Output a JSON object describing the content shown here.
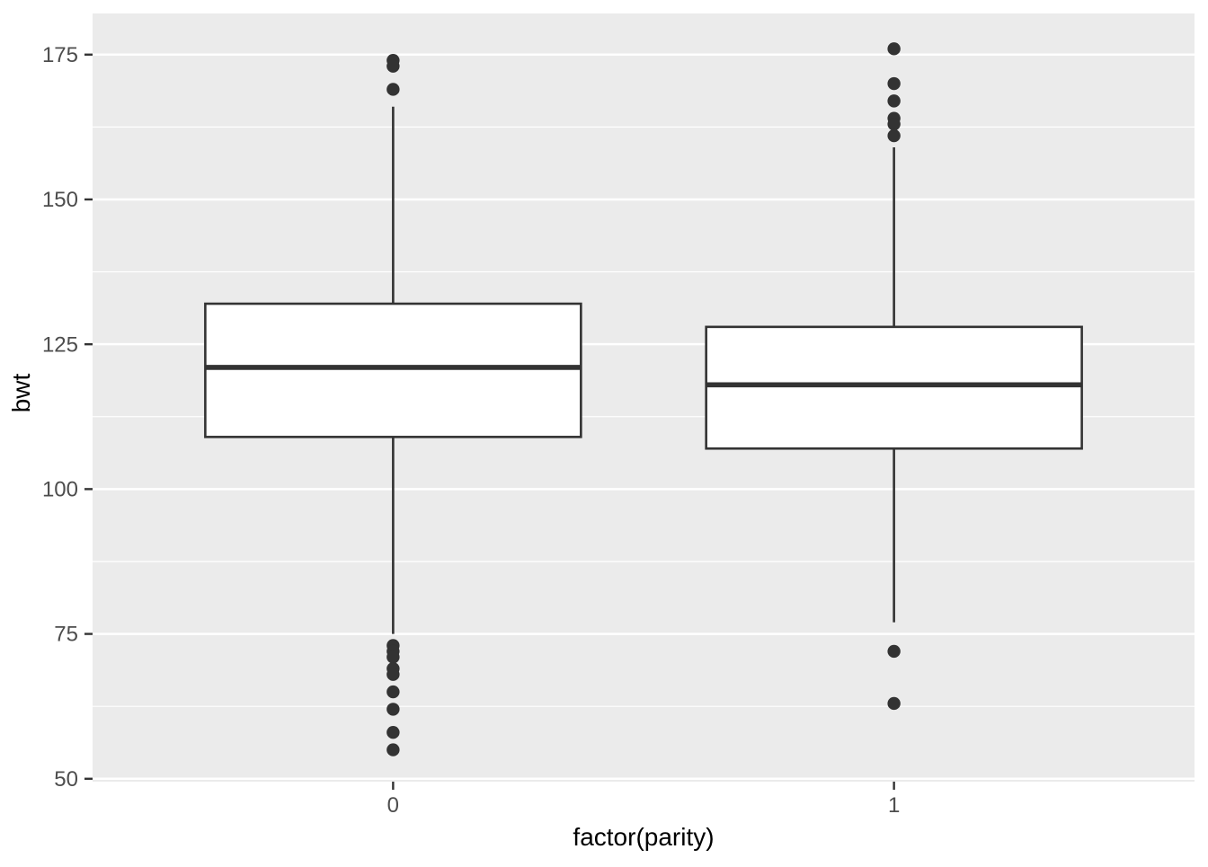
{
  "figure": {
    "background": "#ffffff"
  },
  "chart_data": {
    "type": "boxplot",
    "title": "",
    "xlabel": "factor(parity)",
    "ylabel": "bwt",
    "categories": [
      "0",
      "1"
    ],
    "x_tick_labels": [
      "0",
      "1"
    ],
    "y_tick_labels": [
      "50",
      "75",
      "100",
      "125",
      "150",
      "175"
    ],
    "y_axis": {
      "major_ticks": [
        50,
        75,
        100,
        125,
        150,
        175
      ],
      "minor_ticks": [
        62.5,
        87.5,
        112.5,
        137.5,
        162.5
      ],
      "ylim": [
        49.5,
        182.1
      ],
      "grid": true
    },
    "x_axis": {
      "type": "discrete",
      "expand": 0.6,
      "box_width_units": 0.75
    },
    "series": [
      {
        "category": "0",
        "q1": 109,
        "median": 121,
        "q3": 132,
        "whisker_low": 75,
        "whisker_high": 166,
        "outliers_high": [
          174,
          173,
          169
        ],
        "outliers_low": [
          73,
          72,
          71,
          69,
          68,
          65,
          62,
          58,
          55
        ]
      },
      {
        "category": "1",
        "q1": 107,
        "median": 118,
        "q3": 128,
        "whisker_low": 77,
        "whisker_high": 159,
        "outliers_high": [
          176,
          170,
          167,
          164,
          163,
          161
        ],
        "outliers_low": [
          72,
          63
        ]
      }
    ],
    "style": {
      "panel_background": "#EBEBEB",
      "grid_color": "#FFFFFF",
      "box_fill": "#FFFFFF",
      "stroke_color": "#333333",
      "tick_label_color": "#4D4D4D",
      "axis_title_color": "#000000",
      "outlier_radius": 7.2,
      "box_stroke_width": 2.6,
      "median_stroke_width": 5.6,
      "whisker_stroke_width": 2.6,
      "major_grid_width": 2.5,
      "minor_grid_width": 1.2
    }
  }
}
